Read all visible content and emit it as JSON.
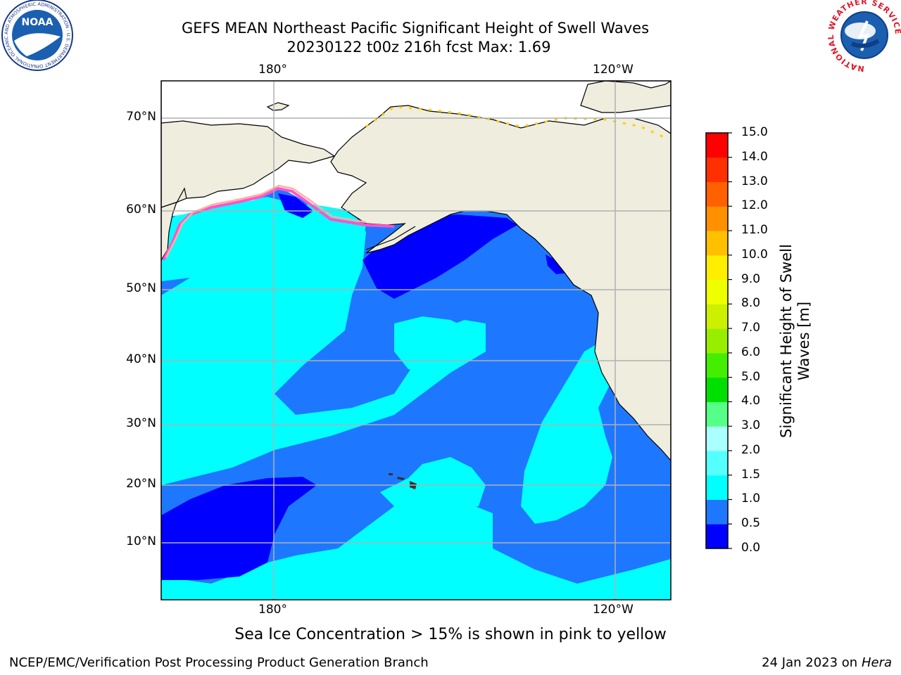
{
  "header": {
    "title_line1": "GEFS MEAN Northeast Pacific Significant Height of Swell Waves",
    "title_line2": "20230122 t00z 216h fcst   Max: 1.69"
  },
  "logos": {
    "noaa": {
      "text": "NOAA",
      "ring_text": "NATIONAL OCEANIC AND ATMOSPHERIC ADMINISTRATION · U.S. DEPARTMENT OF COMMERCE"
    },
    "nws": {
      "ring_text": "NATIONAL WEATHER SERVICE"
    }
  },
  "map": {
    "lon_labels_top": [
      "180°",
      "120°W"
    ],
    "lon_labels_bottom": [
      "180°",
      "120°W"
    ],
    "lat_labels": [
      "70°N",
      "60°N",
      "50°N",
      "40°N",
      "30°N",
      "20°N",
      "10°N"
    ],
    "caption": "Sea Ice Concentration > 15% is shown in pink to yellow",
    "colors": {
      "land": "#efedde",
      "ice_free_white": "#ffffff",
      "grid": "#b0b0b0",
      "ice_edge": [
        "#ff55cc",
        "#ffb0a0",
        "#ffd000"
      ]
    }
  },
  "colorbar": {
    "title": "Significant Height of Swell Waves [m]",
    "tick_labels": [
      "0.0",
      "0.5",
      "1.0",
      "1.5",
      "2.0",
      "3.0",
      "4.0",
      "5.0",
      "6.0",
      "7.0",
      "8.0",
      "9.0",
      "10.0",
      "11.0",
      "12.0",
      "13.0",
      "14.0",
      "15.0"
    ],
    "colors": [
      "#0000ff",
      "#1e78ff",
      "#00ffff",
      "#55ffff",
      "#aaffff",
      "#55ff88",
      "#00e000",
      "#44ee00",
      "#99ee00",
      "#ccf000",
      "#eeff00",
      "#ffee00",
      "#ffc000",
      "#ff9000",
      "#ff6000",
      "#ff3000",
      "#ff0000"
    ]
  },
  "footer": {
    "left": "NCEP/EMC/Verification Post Processing Product Generation Branch",
    "right_date": "24 Jan 2023 on",
    "right_machine": "Hera"
  }
}
